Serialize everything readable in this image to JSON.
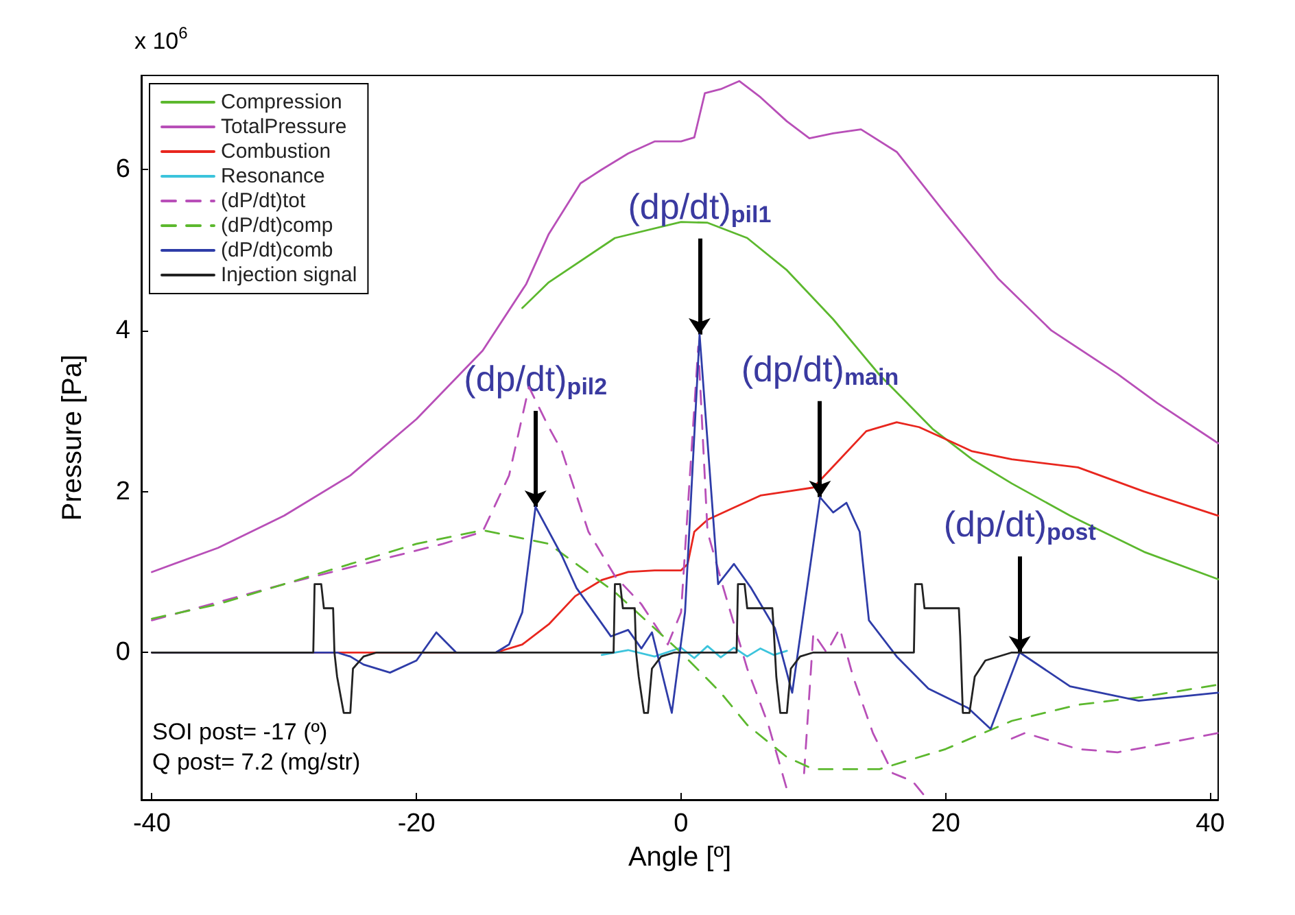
{
  "chart_data": {
    "type": "line",
    "xlabel": "Angle [º]",
    "ylabel": "Pressure [Pa]",
    "xlim": [
      -40.8,
      40.6
    ],
    "xticks": [
      -40,
      -20,
      0,
      20,
      40
    ],
    "ylim": [
      -1.83,
      7.17
    ],
    "yticks": [
      0,
      2,
      4,
      6
    ],
    "grid": false,
    "legend": "top left",
    "marker": "none",
    "annotations": [
      "x 10$^{6}$",
      "SOI post= -17 (º)",
      "Q post= 7.2 (mg/str)",
      {
        "text": "(dp/dt)$_{pil2}$",
        "x": -11,
        "y": 1.81
      },
      {
        "text": "(dp/dt)$_{pil1}$",
        "x": 1.4,
        "y": 3.95
      },
      {
        "text": "(dp/dt)$_{main}$",
        "x": 10.5,
        "y": 1.93
      },
      {
        "text": "(dp/dt)$_{post}$",
        "x": 25.6,
        "y": 0
      }
    ],
    "series": [
      {
        "name": "Compression",
        "color": "#5cb82e",
        "line_style": "solid",
        "x": [
          -12,
          -10,
          -5,
          0,
          2,
          5,
          8,
          11.5,
          15,
          19,
          22,
          25,
          29.4,
          35,
          40.6
        ],
        "values": [
          4.28,
          4.6,
          5.15,
          5.35,
          5.34,
          5.15,
          4.75,
          4.14,
          3.45,
          2.78,
          2.4,
          2.1,
          1.7,
          1.25,
          0.91
        ]
      },
      {
        "name": "TotalPressure",
        "color": "#b84fb8",
        "line_style": "solid",
        "x": [
          -40,
          -35,
          -30,
          -25,
          -20,
          -15,
          -11.7,
          -10,
          -7.6,
          -6,
          -4,
          -2,
          0,
          1,
          1.8,
          3,
          4.4,
          6,
          8,
          9.7,
          11.5,
          13.6,
          16.3,
          20,
          24,
          28,
          33,
          36,
          40.6
        ],
        "values": [
          1.0,
          1.3,
          1.7,
          2.2,
          2.9,
          3.75,
          4.58,
          5.2,
          5.83,
          6.0,
          6.2,
          6.35,
          6.35,
          6.4,
          6.95,
          7.0,
          7.1,
          6.9,
          6.6,
          6.39,
          6.45,
          6.5,
          6.22,
          5.45,
          4.64,
          4.0,
          3.46,
          3.1,
          2.6
        ]
      },
      {
        "name": "Combustion",
        "color": "#e8261e",
        "line_style": "solid",
        "x": [
          -40,
          -14,
          -12,
          -10,
          -8,
          -6,
          -4,
          -2,
          0,
          0.5,
          1,
          2,
          4,
          6,
          8,
          10,
          12,
          14,
          16.3,
          18,
          20,
          22,
          25,
          30,
          35,
          40.6
        ],
        "values": [
          0,
          0,
          0.1,
          0.35,
          0.7,
          0.9,
          1.0,
          1.02,
          1.02,
          1.1,
          1.5,
          1.65,
          1.8,
          1.95,
          2.0,
          2.05,
          2.4,
          2.75,
          2.86,
          2.8,
          2.65,
          2.5,
          2.4,
          2.3,
          2.0,
          1.7
        ]
      },
      {
        "name": "Resonance",
        "color": "#3cc4dc",
        "line_style": "solid",
        "x": [
          -6,
          -4,
          -2,
          0,
          1,
          2,
          3,
          4,
          5,
          6,
          7,
          8
        ],
        "values": [
          -0.03,
          0.03,
          -0.05,
          0.06,
          -0.07,
          0.08,
          -0.06,
          0.06,
          -0.05,
          0.05,
          -0.03,
          0.02
        ]
      },
      {
        "name": "(dP/dt)tot",
        "color": "#b84fb8",
        "line_style": "dashed",
        "x": [
          -40,
          -30,
          -24,
          -18,
          -15,
          -13,
          -11.5,
          -10,
          -9,
          -7,
          -5,
          -3,
          -1,
          0,
          1.3,
          2,
          3.2,
          5,
          6.6,
          8,
          8.7,
          9.3,
          10,
          11,
          12,
          13,
          14.5,
          16,
          17.5,
          18.5,
          19,
          24,
          25,
          26,
          30,
          33,
          36,
          40.6
        ],
        "values": [
          0.4,
          0.85,
          1.1,
          1.35,
          1.5,
          2.2,
          3.3,
          2.8,
          2.5,
          1.5,
          0.95,
          0.6,
          0.1,
          0.5,
          3.8,
          1.5,
          0.8,
          -0.2,
          -0.9,
          -1.7,
          null,
          -1.5,
          0.24,
          0.0,
          0.3,
          -0.3,
          -1.0,
          -1.5,
          -1.6,
          -1.8,
          null,
          null,
          -1.07,
          -1.0,
          -1.2,
          -1.24,
          -1.15,
          -1.0
        ]
      },
      {
        "name": "(dP/dt)comp",
        "color": "#5cb82e",
        "line_style": "dashed",
        "x": [
          -40,
          -35,
          -30,
          -25,
          -20,
          -15,
          -10,
          -5,
          0,
          3,
          5,
          8,
          10,
          15,
          20,
          25,
          30,
          35,
          40.6
        ],
        "values": [
          0.42,
          0.6,
          0.85,
          1.1,
          1.35,
          1.52,
          1.35,
          0.75,
          0,
          -0.5,
          -0.9,
          -1.3,
          -1.45,
          -1.45,
          -1.2,
          -0.85,
          -0.65,
          -0.55,
          -0.4
        ]
      },
      {
        "name": "(dP/dt)comb",
        "color": "#2e3ca8",
        "line_style": "solid",
        "x": [
          -40,
          -26,
          -25,
          -24,
          -22,
          -20,
          -18.5,
          -17,
          -14,
          -13,
          -12,
          -11,
          -9,
          -7.9,
          -5.3,
          -4,
          -3,
          -2.2,
          -0.7,
          0.3,
          1.4,
          2.8,
          4,
          5.3,
          7.1,
          8.4,
          10.5,
          11.5,
          12.5,
          13.5,
          14.2,
          16.3,
          18.7,
          21.7,
          23.4,
          25.6,
          29.4,
          34.6,
          40.6
        ],
        "values": [
          0,
          0,
          -0.05,
          -0.15,
          -0.25,
          -0.1,
          0.25,
          0,
          0,
          0.1,
          0.5,
          1.81,
          1.2,
          0.8,
          0.2,
          0.28,
          0.05,
          0.25,
          -0.75,
          0.5,
          3.95,
          0.85,
          1.1,
          0.8,
          0.3,
          -0.5,
          1.93,
          1.74,
          1.86,
          1.5,
          0.4,
          -0.05,
          -0.45,
          -0.69,
          -0.95,
          0,
          -0.42,
          -0.6,
          -0.5
        ]
      },
      {
        "name": "Injection signal",
        "color": "#222222",
        "line_style": "solid",
        "x": [
          -40,
          -27.8,
          -27.7,
          -27.2,
          -27,
          -26.3,
          -26.2,
          -26,
          -25.5,
          -25,
          -24.8,
          -24,
          -23,
          -5.1,
          -5,
          -4.6,
          -4.4,
          -3.5,
          -3.4,
          -3.2,
          -2.8,
          -2.5,
          -2.2,
          -1.5,
          -0.5,
          4.2,
          4.3,
          4.8,
          5,
          6.9,
          7.0,
          7.2,
          7.5,
          8,
          8.3,
          9,
          10,
          17.6,
          17.7,
          18.2,
          18.4,
          21,
          21.1,
          21.3,
          21.8,
          22.2,
          23,
          25,
          40.6
        ],
        "values": [
          0,
          0,
          0.85,
          0.85,
          0.55,
          0.55,
          0,
          -0.3,
          -0.75,
          -0.75,
          -0.2,
          -0.05,
          0,
          0,
          0.85,
          0.85,
          0.55,
          0.55,
          0,
          -0.3,
          -0.75,
          -0.75,
          -0.2,
          -0.05,
          0,
          0,
          0.85,
          0.85,
          0.55,
          0.55,
          0.3,
          -0.3,
          -0.75,
          -0.75,
          -0.2,
          -0.05,
          0,
          0,
          0.85,
          0.85,
          0.55,
          0.55,
          0.2,
          -0.75,
          -0.75,
          -0.3,
          -0.1,
          0,
          0
        ]
      }
    ]
  }
}
